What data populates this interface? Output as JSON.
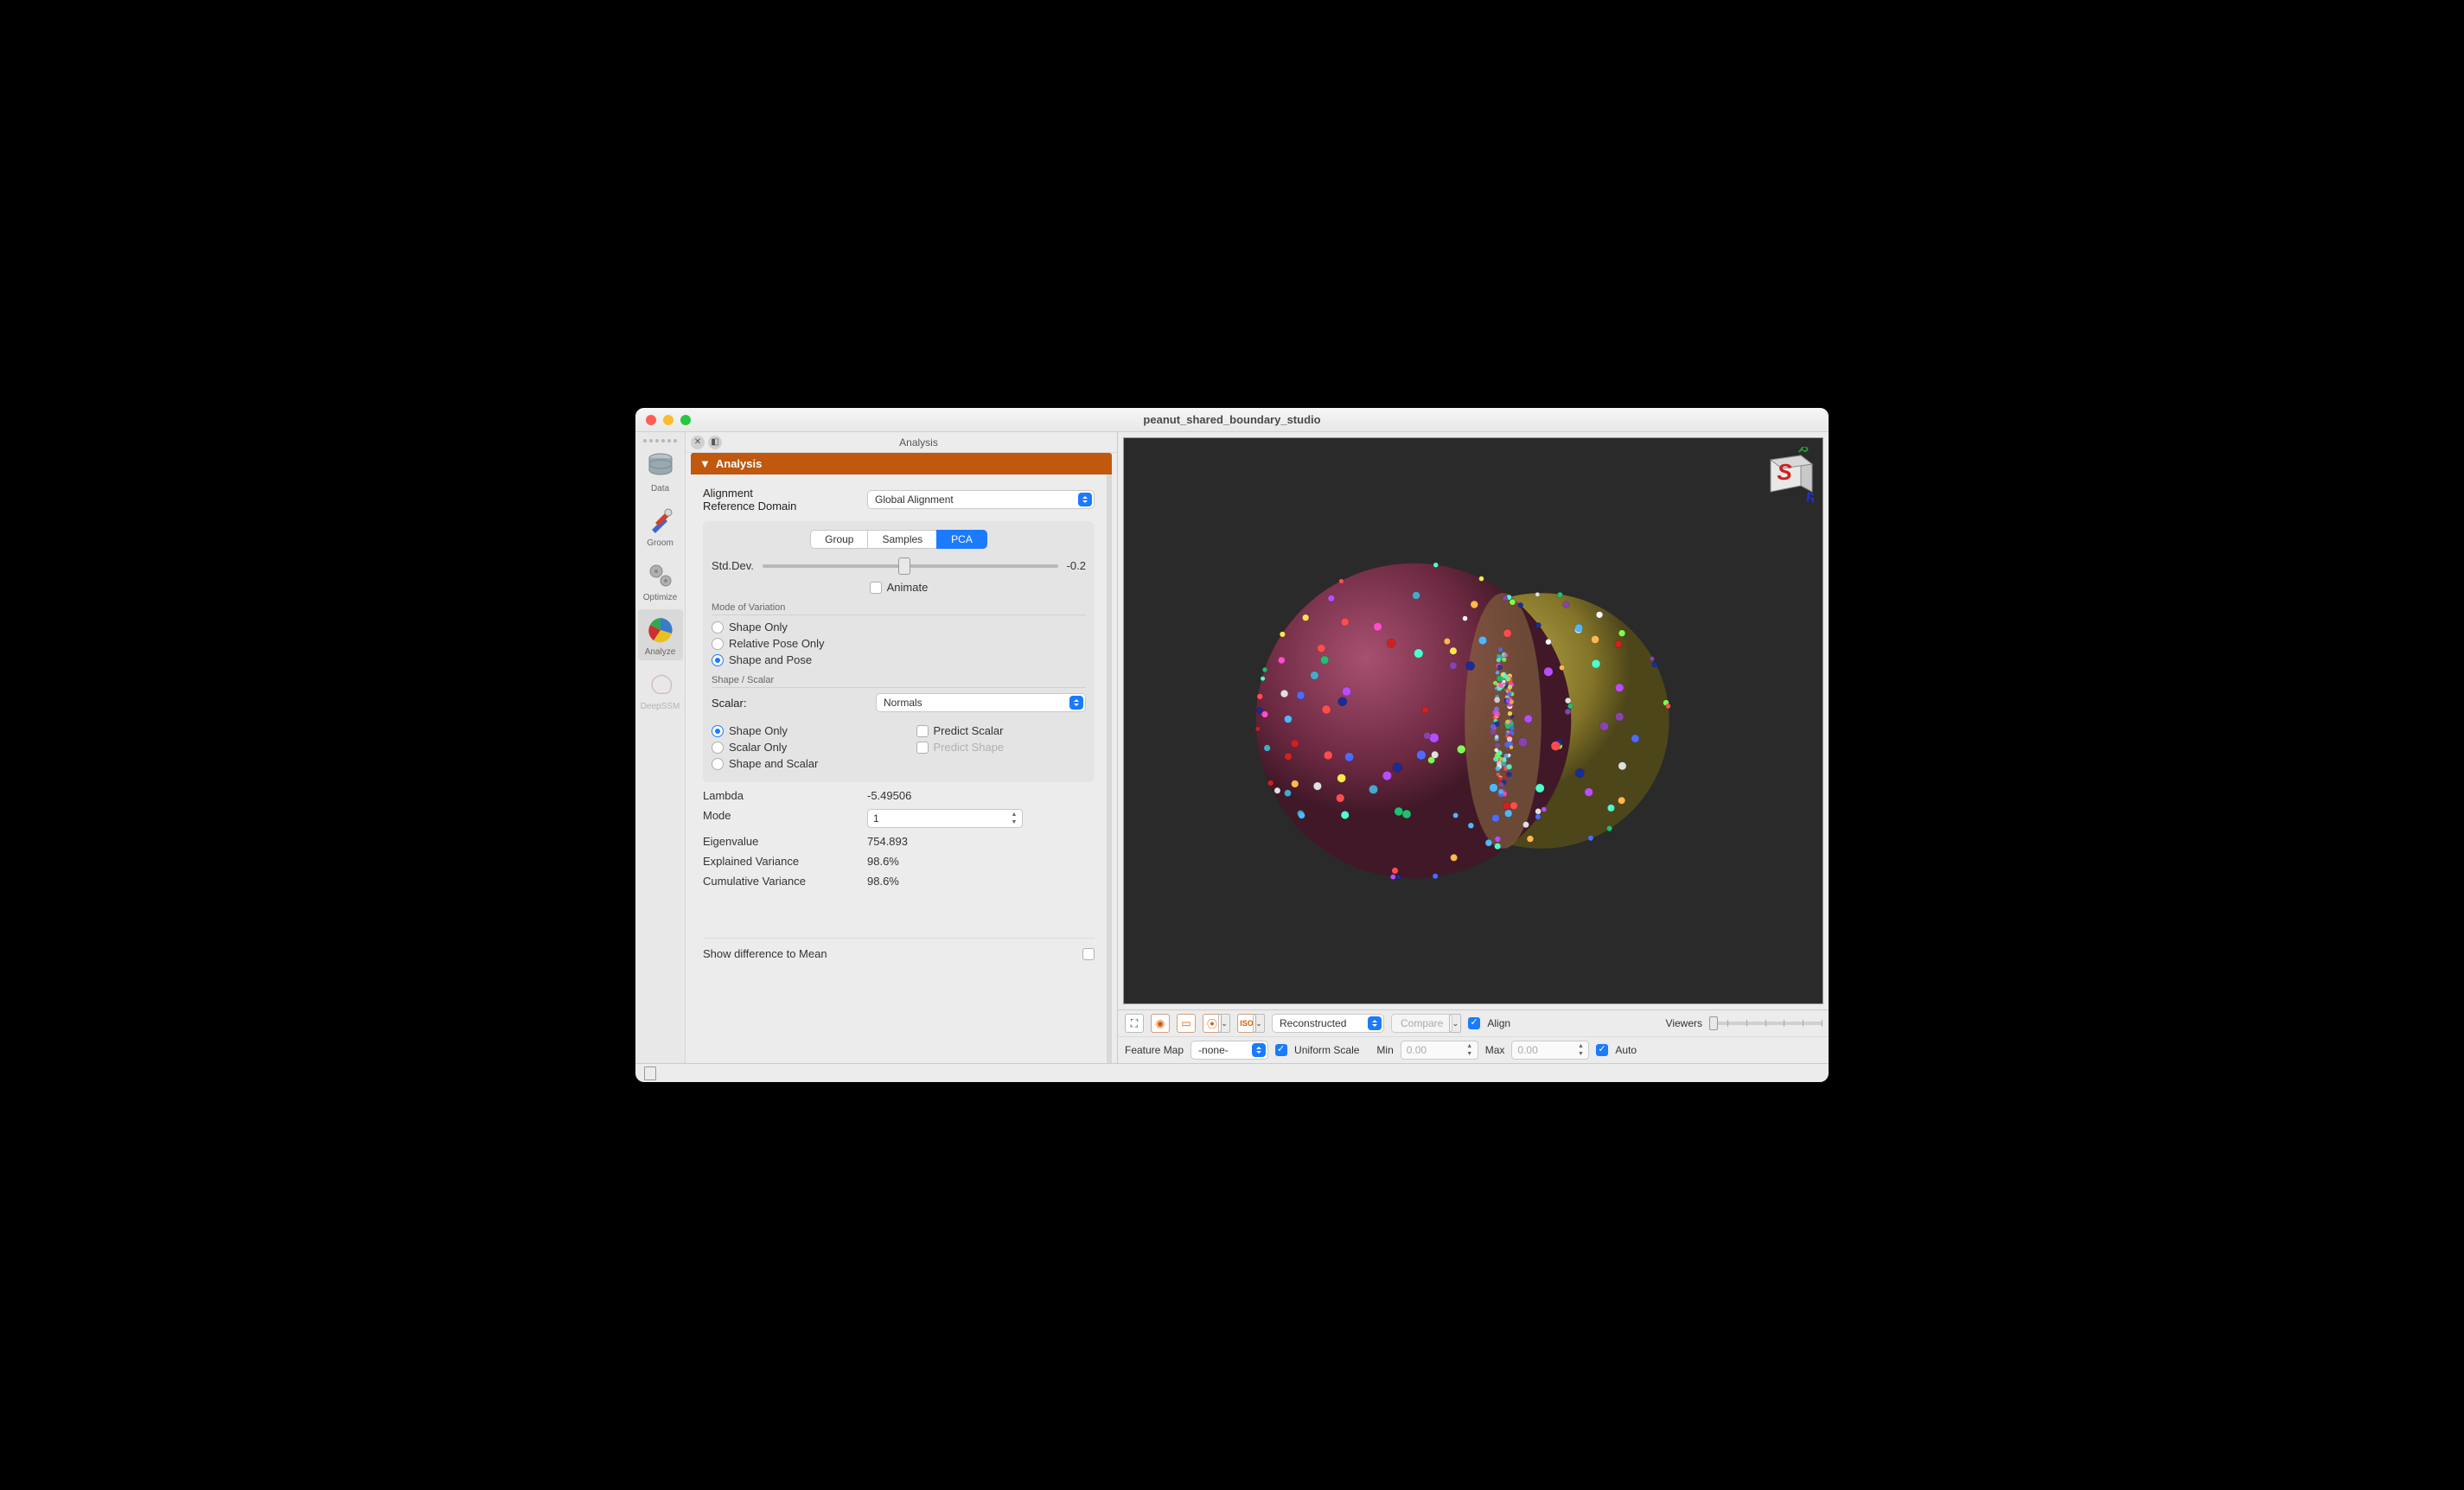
{
  "window": {
    "title": "peanut_shared_boundary_studio"
  },
  "toolbar": {
    "items": [
      {
        "label": "Data"
      },
      {
        "label": "Groom"
      },
      {
        "label": "Optimize"
      },
      {
        "label": "Analyze"
      },
      {
        "label": "DeepSSM"
      }
    ]
  },
  "panel": {
    "tabTitle": "Analysis",
    "headerTitle": "Analysis",
    "alignment": {
      "label1": "Alignment",
      "label2": "Reference Domain",
      "value": "Global Alignment"
    },
    "segments": {
      "group": "Group",
      "samples": "Samples",
      "pca": "PCA"
    },
    "stddev": {
      "label": "Std.Dev.",
      "value": "-0.2",
      "thumb_pct": 46
    },
    "animate": {
      "label": "Animate",
      "checked": false
    },
    "modeOfVariation": {
      "header": "Mode of Variation",
      "opts": {
        "shapeOnly": "Shape Only",
        "relPose": "Relative Pose Only",
        "shapePose": "Shape and Pose"
      },
      "selected": "shapePose"
    },
    "shapeScalar": {
      "header": "Shape / Scalar",
      "scalarLabel": "Scalar:",
      "scalarValue": "Normals",
      "left": {
        "shapeOnly": "Shape Only",
        "scalarOnly": "Scalar Only",
        "shapeAndScalar": "Shape and Scalar"
      },
      "leftSelected": "shapeOnly",
      "right": {
        "predictScalar": "Predict Scalar",
        "predictShape": "Predict Shape"
      }
    },
    "stats": {
      "lambda": {
        "k": "Lambda",
        "v": "-5.49506"
      },
      "mode": {
        "k": "Mode",
        "v": "1"
      },
      "eig": {
        "k": "Eigenvalue",
        "v": "754.893"
      },
      "exp": {
        "k": "Explained Variance",
        "v": "98.6%"
      },
      "cum": {
        "k": "Cumulative Variance",
        "v": "98.6%"
      }
    },
    "showDiff": {
      "label": "Show difference to Mean",
      "checked": false
    }
  },
  "viewport": {
    "sphere1_color": "#7a2e48",
    "sphere2_color": "#9a8a2a",
    "bg": "#2a2a2a",
    "dot_colors": [
      "#ff4d4d",
      "#ffb84d",
      "#ffe94d",
      "#7fff4d",
      "#4dffd0",
      "#4db8ff",
      "#4d6bff",
      "#b84dff",
      "#ff4dcb",
      "#ffffff",
      "#1a2b9a",
      "#d02020",
      "#20c070",
      "#e0e0e0",
      "#8844aa",
      "#44aacc"
    ]
  },
  "bottomBar": {
    "reconstructed": "Reconstructed",
    "compare": "Compare",
    "align": "Align",
    "viewers": "Viewers"
  },
  "bottomBar2": {
    "featureMap": "Feature Map",
    "featureValue": "-none-",
    "uniformScale": "Uniform Scale",
    "min": "Min",
    "minVal": "0.00",
    "max": "Max",
    "maxVal": "0.00",
    "auto": "Auto"
  },
  "colors": {
    "accent_orange": "#c0580e",
    "accent_blue": "#1a7bff"
  }
}
